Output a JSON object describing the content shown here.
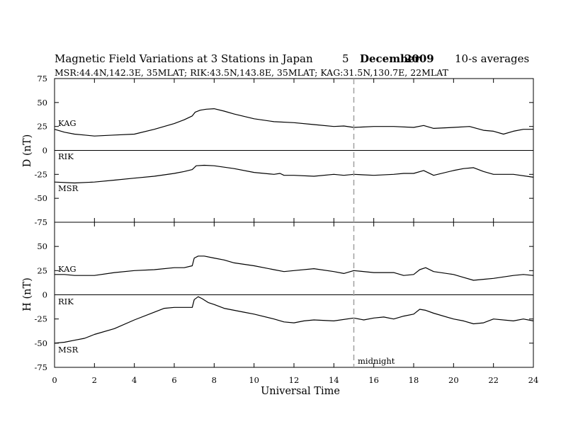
{
  "header": {
    "title_main": "Magnetic Field Variations at 3 Stations in Japan",
    "title_day": "5",
    "title_month": "December",
    "title_year": "2009",
    "title_avg": "10-s averages",
    "stations_line": "MSR:44.4N,142.3E, 35MLAT;  RIK:43.5N,143.8E, 35MLAT;  KAG:31.5N,130.7E, 22MLAT"
  },
  "chart_data": {
    "type": "line",
    "xlabel": "Universal Time",
    "xlim": [
      0,
      24
    ],
    "xticks": [
      0,
      2,
      4,
      6,
      8,
      10,
      12,
      14,
      16,
      18,
      20,
      22,
      24
    ],
    "marker": {
      "x": 15,
      "label": "midnight",
      "style": "dashed",
      "color": "#a0a0a0"
    },
    "panels": [
      {
        "id": "D",
        "ylabel": "D (nT)",
        "ylim": [
          -75,
          75
        ],
        "yticks": [
          75,
          50,
          25,
          0,
          -25,
          -50,
          -75
        ],
        "zero_line": true,
        "series": [
          {
            "name": "KAG",
            "x": [
              0,
              0.5,
              1,
              1.5,
              2,
              3,
              4,
              5,
              6,
              6.5,
              6.9,
              7.05,
              7.3,
              7.6,
              8,
              8.5,
              9,
              10,
              11,
              12,
              13,
              14,
              14.5,
              15,
              16,
              17,
              18,
              18.5,
              19,
              20,
              20.8,
              21.5,
              22,
              22.5,
              23,
              23.5,
              24
            ],
            "values": [
              22,
              19,
              17,
              16,
              15,
              16,
              17,
              22,
              28,
              32,
              36,
              40,
              42,
              43,
              43.5,
              41,
              38,
              33,
              30,
              29,
              27,
              25,
              25.5,
              24,
              25,
              25,
              24,
              26,
              23,
              24,
              25,
              21,
              20,
              17,
              20,
              22,
              22
            ]
          },
          {
            "name": "RIK",
            "x": [
              0,
              24
            ],
            "values": [
              0,
              0
            ]
          },
          {
            "name": "MSR",
            "x": [
              0,
              1,
              2,
              3,
              4,
              5,
              6,
              6.5,
              6.9,
              7.1,
              7.5,
              8,
              9,
              10,
              11,
              11.3,
              11.5,
              12,
              13,
              14,
              14.5,
              15,
              16,
              17,
              17.5,
              18,
              18.5,
              19,
              20,
              20.5,
              21,
              21.5,
              22,
              23,
              24
            ],
            "values": [
              -33,
              -34,
              -33,
              -31,
              -29,
              -27,
              -24,
              -22,
              -20,
              -16,
              -15.5,
              -16,
              -19,
              -23,
              -25,
              -24,
              -26,
              -26,
              -27,
              -25,
              -26,
              -25,
              -26,
              -25,
              -24,
              -24,
              -21,
              -26,
              -21,
              -19,
              -18,
              -22,
              -25,
              -25,
              -28
            ]
          }
        ]
      },
      {
        "id": "H",
        "ylabel": "H (nT)",
        "ylim": [
          -75,
          75
        ],
        "yticks": [
          75,
          50,
          25,
          0,
          -25,
          -50,
          -75
        ],
        "zero_line": true,
        "series": [
          {
            "name": "KAG",
            "x": [
              0,
              0.5,
              1,
              1.5,
              2,
              3,
              4,
              5,
              6,
              6.5,
              6.9,
              7.0,
              7.2,
              7.5,
              8,
              8.5,
              9,
              10,
              11,
              11.5,
              12,
              13,
              14,
              14.5,
              15,
              16,
              17,
              17.5,
              18,
              18.3,
              18.6,
              19,
              20,
              20.5,
              21,
              21.5,
              22,
              23,
              23.5,
              24
            ],
            "values": [
              21,
              21,
              20,
              20,
              20,
              23,
              25,
              26,
              28,
              28,
              30,
              38,
              40,
              40,
              38,
              36,
              33,
              30,
              26,
              24,
              25,
              27,
              24,
              22,
              25,
              23,
              23,
              20,
              21,
              26,
              28,
              24,
              21,
              18,
              15,
              16,
              17,
              20,
              21,
              20
            ]
          },
          {
            "name": "RIK",
            "x": [
              0,
              24
            ],
            "values": [
              0,
              0
            ]
          },
          {
            "name": "MSR",
            "x": [
              0,
              0.5,
              1,
              1.5,
              2,
              3,
              4,
              5,
              5.5,
              6,
              6.5,
              6.9,
              7.0,
              7.2,
              7.4,
              7.7,
              8,
              8.5,
              9,
              9.5,
              10,
              11,
              11.5,
              12,
              12.5,
              13,
              14,
              15,
              15.5,
              16,
              16.5,
              17,
              17.5,
              18,
              18.3,
              18.6,
              19,
              20,
              20.5,
              21,
              21.5,
              22,
              23,
              23.5,
              24
            ],
            "values": [
              -50,
              -49,
              -47,
              -45,
              -41,
              -35,
              -26,
              -18,
              -14,
              -13,
              -13,
              -13,
              -5,
              -2,
              -4,
              -8,
              -10,
              -14,
              -16,
              -18,
              -20,
              -25,
              -28,
              -29,
              -27,
              -26,
              -27,
              -24,
              -26,
              -24,
              -23,
              -25,
              -22,
              -20,
              -15,
              -16,
              -19,
              -25,
              -27,
              -30,
              -29,
              -25,
              -27,
              -25,
              -27
            ]
          }
        ]
      }
    ]
  }
}
